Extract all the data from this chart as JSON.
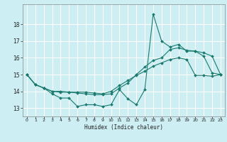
{
  "title": "",
  "xlabel": "Humidex (Indice chaleur)",
  "xlim": [
    -0.5,
    23.5
  ],
  "ylim": [
    12.5,
    19.2
  ],
  "yticks": [
    13,
    14,
    15,
    16,
    17,
    18
  ],
  "xticks": [
    0,
    1,
    2,
    3,
    4,
    5,
    6,
    7,
    8,
    9,
    10,
    11,
    12,
    13,
    14,
    15,
    16,
    17,
    18,
    19,
    20,
    21,
    22,
    23
  ],
  "bg_color": "#cdeef2",
  "grid_color": "#ffffff",
  "line_color": "#1a7a6e",
  "line1_x": [
    0,
    1,
    2,
    3,
    4,
    5,
    6,
    7,
    8,
    9,
    10,
    11,
    12,
    13,
    14,
    15,
    16,
    17,
    18,
    19,
    20,
    21,
    22,
    23
  ],
  "line1_y": [
    15.0,
    14.4,
    14.2,
    13.85,
    13.6,
    13.6,
    13.1,
    13.2,
    13.2,
    13.1,
    13.2,
    14.1,
    13.55,
    13.2,
    14.1,
    18.6,
    17.0,
    16.65,
    16.8,
    16.4,
    16.4,
    16.1,
    15.1,
    15.0
  ],
  "line2_x": [
    0,
    1,
    2,
    3,
    4,
    5,
    6,
    7,
    8,
    9,
    10,
    11,
    12,
    13,
    14,
    15,
    16,
    17,
    18,
    19,
    20,
    21,
    22,
    23
  ],
  "line2_y": [
    15.0,
    14.4,
    14.2,
    14.0,
    13.95,
    13.95,
    13.9,
    13.85,
    13.8,
    13.8,
    13.85,
    14.2,
    14.5,
    15.0,
    15.45,
    15.85,
    16.0,
    16.5,
    16.6,
    16.45,
    16.4,
    16.3,
    16.1,
    15.0
  ],
  "line3_x": [
    0,
    1,
    2,
    3,
    4,
    5,
    6,
    7,
    8,
    9,
    10,
    11,
    12,
    13,
    14,
    15,
    16,
    17,
    18,
    19,
    20,
    21,
    22,
    23
  ],
  "line3_y": [
    15.0,
    14.4,
    14.2,
    14.0,
    14.0,
    13.95,
    13.95,
    13.95,
    13.9,
    13.85,
    14.0,
    14.35,
    14.65,
    14.95,
    15.2,
    15.5,
    15.7,
    15.9,
    16.0,
    15.9,
    14.95,
    14.95,
    14.9,
    15.0
  ]
}
